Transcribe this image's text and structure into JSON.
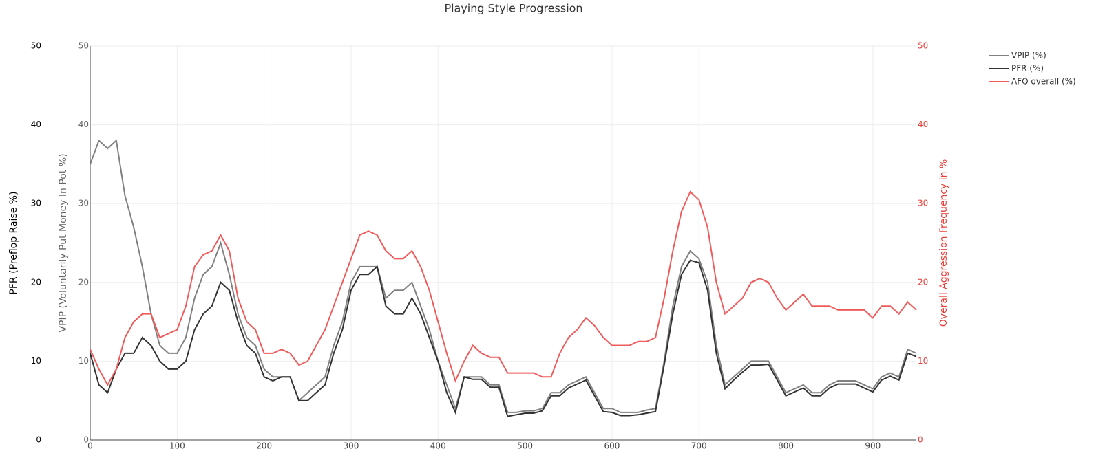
{
  "chart_data": {
    "type": "line",
    "title": "Playing Style Progression",
    "x": [
      0,
      10,
      20,
      30,
      40,
      50,
      60,
      70,
      80,
      90,
      100,
      110,
      120,
      130,
      140,
      150,
      160,
      170,
      180,
      190,
      200,
      210,
      220,
      230,
      240,
      250,
      260,
      270,
      280,
      290,
      300,
      310,
      320,
      330,
      340,
      350,
      360,
      370,
      380,
      390,
      400,
      410,
      420,
      430,
      440,
      450,
      460,
      470,
      480,
      490,
      500,
      510,
      520,
      530,
      540,
      550,
      560,
      570,
      580,
      590,
      600,
      610,
      620,
      630,
      640,
      650,
      660,
      670,
      680,
      690,
      700,
      710,
      720,
      730,
      740,
      750,
      760,
      770,
      780,
      790,
      800,
      810,
      820,
      830,
      840,
      850,
      860,
      870,
      880,
      890,
      900,
      910,
      920,
      930,
      940,
      950
    ],
    "xlim": [
      0,
      950
    ],
    "xticks": [
      0,
      100,
      200,
      300,
      400,
      500,
      600,
      700,
      800,
      900
    ],
    "axes": {
      "y": {
        "label": "VPIP (Voluntarily Put Money In Pot %)",
        "lim": [
          0,
          50
        ],
        "ticks": [
          0,
          10,
          20,
          30,
          40,
          50
        ],
        "color": "#666666"
      },
      "y3": {
        "label": "PFR (Preflop Raise %)",
        "lim": [
          0,
          50
        ],
        "ticks": [
          0,
          10,
          20,
          30,
          40,
          50
        ],
        "color": "#000000"
      },
      "y2": {
        "label": "Overall Aggression Frequency in %",
        "lim": [
          0,
          50
        ],
        "ticks": [
          0,
          10,
          20,
          30,
          40,
          50
        ],
        "color": "#e8403a"
      }
    },
    "grid": true,
    "legend": "top-right",
    "series": [
      {
        "name": "VPIP (%)",
        "color": "#808080",
        "axis": "y",
        "values": [
          35,
          38,
          37,
          38,
          31,
          27,
          22,
          16,
          12,
          11,
          11,
          13,
          18,
          21,
          22,
          25,
          21,
          16,
          13,
          12,
          9,
          8,
          8,
          8,
          5,
          6,
          7,
          8,
          12,
          15,
          20,
          22,
          22,
          22,
          18,
          19,
          19,
          20,
          17,
          14,
          10,
          7,
          4,
          8,
          8,
          8,
          7,
          7,
          3.5,
          3.5,
          3.7,
          3.7,
          4,
          6,
          6,
          7,
          7.5,
          8,
          6,
          4,
          4,
          3.5,
          3.5,
          3.5,
          3.8,
          4,
          10,
          17,
          22,
          24,
          23,
          20,
          12,
          7,
          8,
          9,
          10,
          10,
          10,
          8,
          6,
          6.5,
          7,
          6,
          6,
          7,
          7.5,
          7.5,
          7.5,
          7,
          6.5,
          8,
          8.5,
          8,
          11.5,
          11
        ]
      },
      {
        "name": "PFR (%)",
        "color": "#333333",
        "axis": "y3",
        "values": [
          11,
          7,
          6,
          9,
          11,
          11,
          13,
          12,
          10,
          9,
          9,
          10,
          14,
          16,
          17,
          20,
          19,
          15,
          12,
          11,
          8,
          7.5,
          8,
          8,
          5,
          5,
          6,
          7,
          11,
          14,
          19,
          21,
          21,
          22,
          17,
          16,
          16,
          18,
          16,
          13,
          10,
          6,
          3.5,
          8,
          7.7,
          7.7,
          6.7,
          6.7,
          3,
          3.2,
          3.4,
          3.4,
          3.7,
          5.6,
          5.6,
          6.6,
          7.1,
          7.6,
          5.6,
          3.6,
          3.5,
          3.1,
          3.1,
          3.2,
          3.4,
          3.6,
          9.5,
          16,
          21,
          22.8,
          22.5,
          19,
          11,
          6.5,
          7.6,
          8.6,
          9.5,
          9.5,
          9.6,
          7.6,
          5.6,
          6.1,
          6.6,
          5.6,
          5.6,
          6.6,
          7.1,
          7.1,
          7.1,
          6.6,
          6.1,
          7.6,
          8.1,
          7.6,
          11,
          10.6
        ]
      },
      {
        "name": "AFQ overall (%)",
        "color": "#ef5b5b",
        "axis": "y2",
        "values": [
          11.5,
          9,
          7,
          9,
          13,
          15,
          16,
          16,
          13,
          13.5,
          14,
          17,
          22,
          23.5,
          24,
          26,
          24,
          18,
          15,
          14,
          11,
          11,
          11.5,
          11,
          9.5,
          10,
          12,
          14,
          17,
          20,
          23,
          26,
          26.5,
          26,
          24,
          23,
          23,
          24,
          22,
          19,
          15,
          11,
          7.5,
          10,
          12,
          11,
          10.5,
          10.5,
          8.5,
          8.5,
          8.5,
          8.5,
          8,
          8,
          11,
          13,
          14,
          15.5,
          14.5,
          13,
          12,
          12,
          12,
          12.5,
          12.5,
          13,
          18,
          24,
          29,
          31.5,
          30.5,
          27,
          20,
          16,
          17,
          18,
          20,
          20.5,
          20,
          18,
          16.5,
          17.5,
          18.5,
          17,
          17,
          17,
          16.5,
          16.5,
          16.5,
          16.5,
          15.5,
          17,
          17,
          16,
          17.5,
          16.5
        ]
      }
    ]
  }
}
